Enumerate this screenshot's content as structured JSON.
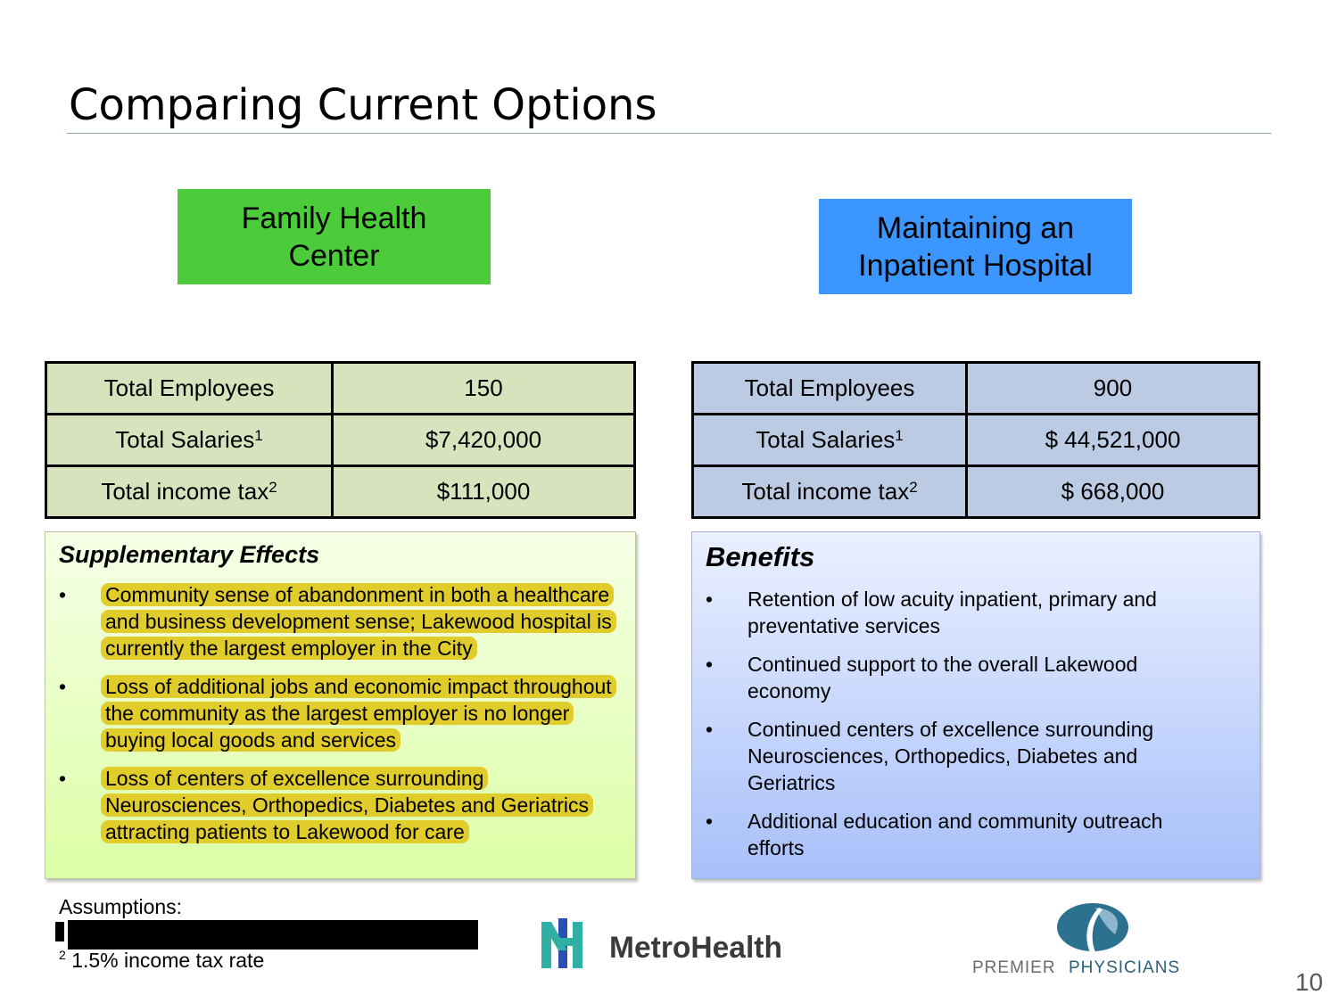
{
  "title": "Comparing Current Options",
  "left": {
    "header": "Family Health Center",
    "table": [
      {
        "label": "Total Employees",
        "sup": "",
        "value": "150"
      },
      {
        "label": "Total Salaries",
        "sup": "1",
        "value": "$7,420,000"
      },
      {
        "label": "Total income tax",
        "sup": "2",
        "value": "$111,000"
      }
    ],
    "box_title": "Supplementary Effects",
    "bullets": [
      "Community sense of abandonment in both a healthcare and business development sense; Lakewood hospital is currently the largest employer in the City",
      "Loss of additional jobs and economic impact throughout the community as the largest employer is no longer buying local goods and services",
      "Loss of centers of excellence surrounding Neurosciences, Orthopedics, Diabetes and Geriatrics attracting patients to Lakewood for care"
    ],
    "header_color": "#4ccc3a",
    "highlight_color": "#e0cc2a"
  },
  "right": {
    "header": "Maintaining an Inpatient Hospital",
    "table": [
      {
        "label": "Total Employees",
        "sup": "",
        "value": "900"
      },
      {
        "label": "Total Salaries",
        "sup": "1",
        "value": "$  44,521,000"
      },
      {
        "label": "Total income tax",
        "sup": "2",
        "value": "$  668,000"
      }
    ],
    "box_title": "Benefits",
    "bullets": [
      "Retention of low acuity inpatient, primary and preventative services",
      "Continued support to the overall Lakewood economy",
      "Continued centers of excellence surrounding Neurosciences, Orthopedics, Diabetes and Geriatrics",
      "Additional education and community outreach efforts"
    ],
    "header_color": "#3c96ff"
  },
  "footer": {
    "assumptions_label": "Assumptions:",
    "footnote2_marker": "2",
    "footnote2": "1.5% income tax rate"
  },
  "logos": {
    "metro": "MetroHealth",
    "premier_1": "PREMIER",
    "premier_2": "PHYSICIANS"
  },
  "page_number": "10"
}
